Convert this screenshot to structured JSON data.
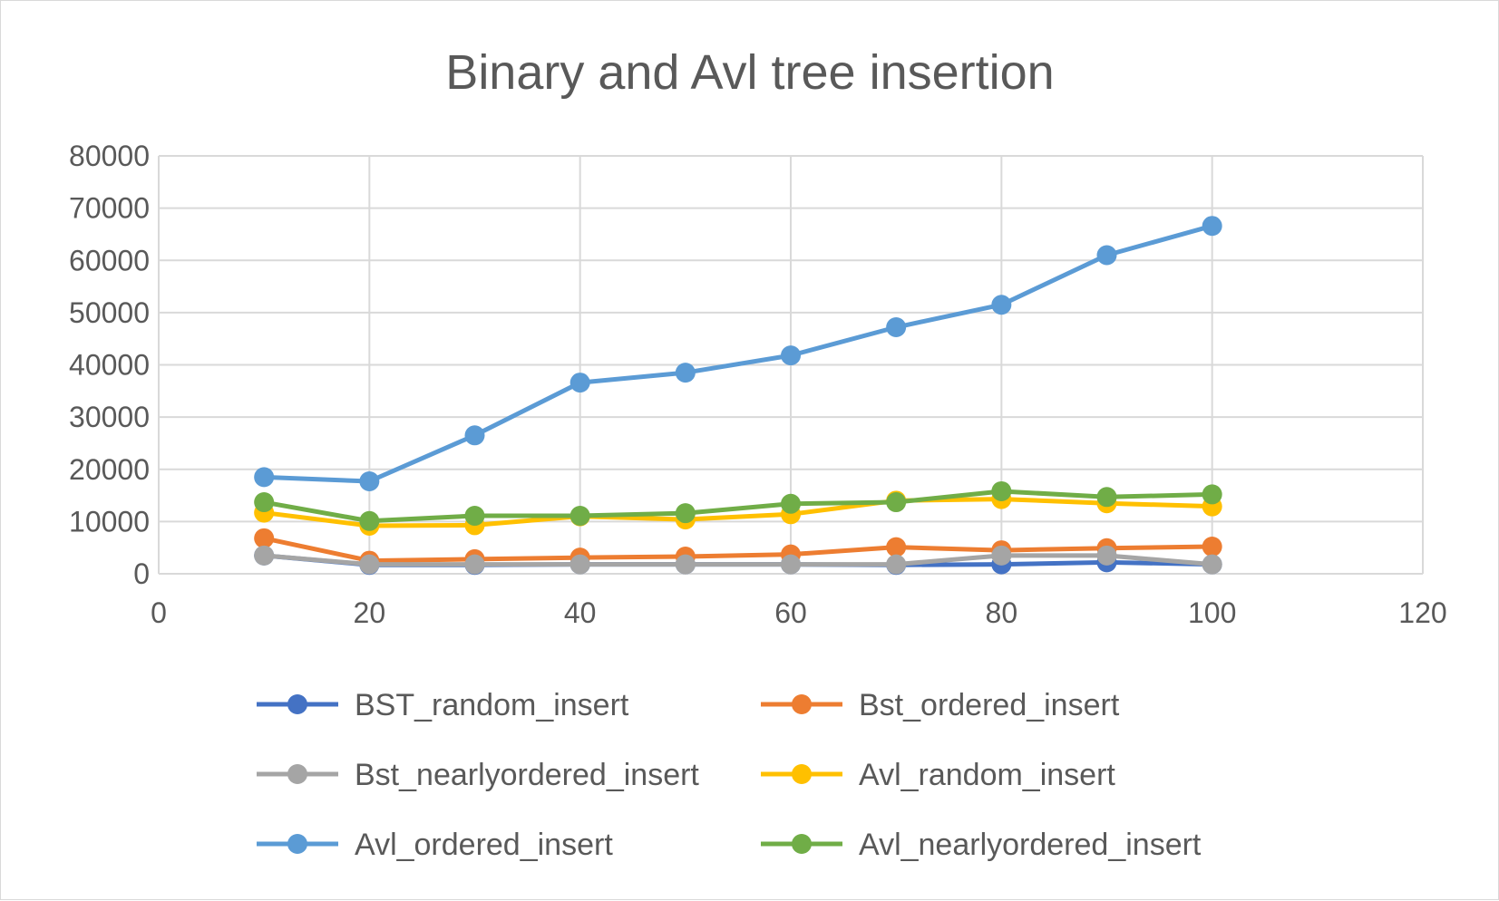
{
  "chart_data": {
    "type": "line",
    "title": "Binary and Avl tree insertion",
    "xlabel": "",
    "ylabel": "",
    "xlim": [
      0,
      120
    ],
    "ylim": [
      0,
      80000
    ],
    "x_ticks": [
      0,
      20,
      40,
      60,
      80,
      100,
      120
    ],
    "y_ticks": [
      0,
      10000,
      20000,
      30000,
      40000,
      50000,
      60000,
      70000,
      80000
    ],
    "x_tick_labels": [
      "0",
      "20",
      "40",
      "60",
      "80",
      "100",
      "120"
    ],
    "y_tick_labels": [
      "0",
      "10000",
      "20000",
      "30000",
      "40000",
      "50000",
      "60000",
      "70000",
      "80000"
    ],
    "grid": true,
    "legend_position": "bottom",
    "x": [
      10,
      20,
      30,
      40,
      50,
      60,
      70,
      80,
      90,
      100
    ],
    "series": [
      {
        "name": "BST_random_insert",
        "color": "#4472c4",
        "values": [
          3500,
          1700,
          1700,
          1800,
          1800,
          1800,
          1700,
          1800,
          2200,
          1800
        ]
      },
      {
        "name": "Bst_ordered_insert",
        "color": "#ed7d31",
        "values": [
          6800,
          2500,
          2800,
          3100,
          3300,
          3700,
          5100,
          4500,
          4900,
          5200
        ]
      },
      {
        "name": "Bst_nearlyordered_insert",
        "color": "#a5a5a5",
        "values": [
          3500,
          1800,
          1800,
          1800,
          1800,
          1800,
          1800,
          3500,
          3500,
          1800
        ]
      },
      {
        "name": "Avl_random_insert",
        "color": "#ffc000",
        "values": [
          11700,
          9200,
          9300,
          11000,
          10400,
          11400,
          14000,
          14300,
          13500,
          12900
        ]
      },
      {
        "name": "Avl_ordered_insert",
        "color": "#5b9bd5",
        "values": [
          18500,
          17700,
          26500,
          36600,
          38500,
          41800,
          47200,
          51500,
          61000,
          66600
        ]
      },
      {
        "name": "Avl_nearlyordered_insert",
        "color": "#70ad47",
        "values": [
          13700,
          10100,
          11100,
          11100,
          11600,
          13400,
          13700,
          15800,
          14700,
          15200
        ]
      }
    ]
  }
}
